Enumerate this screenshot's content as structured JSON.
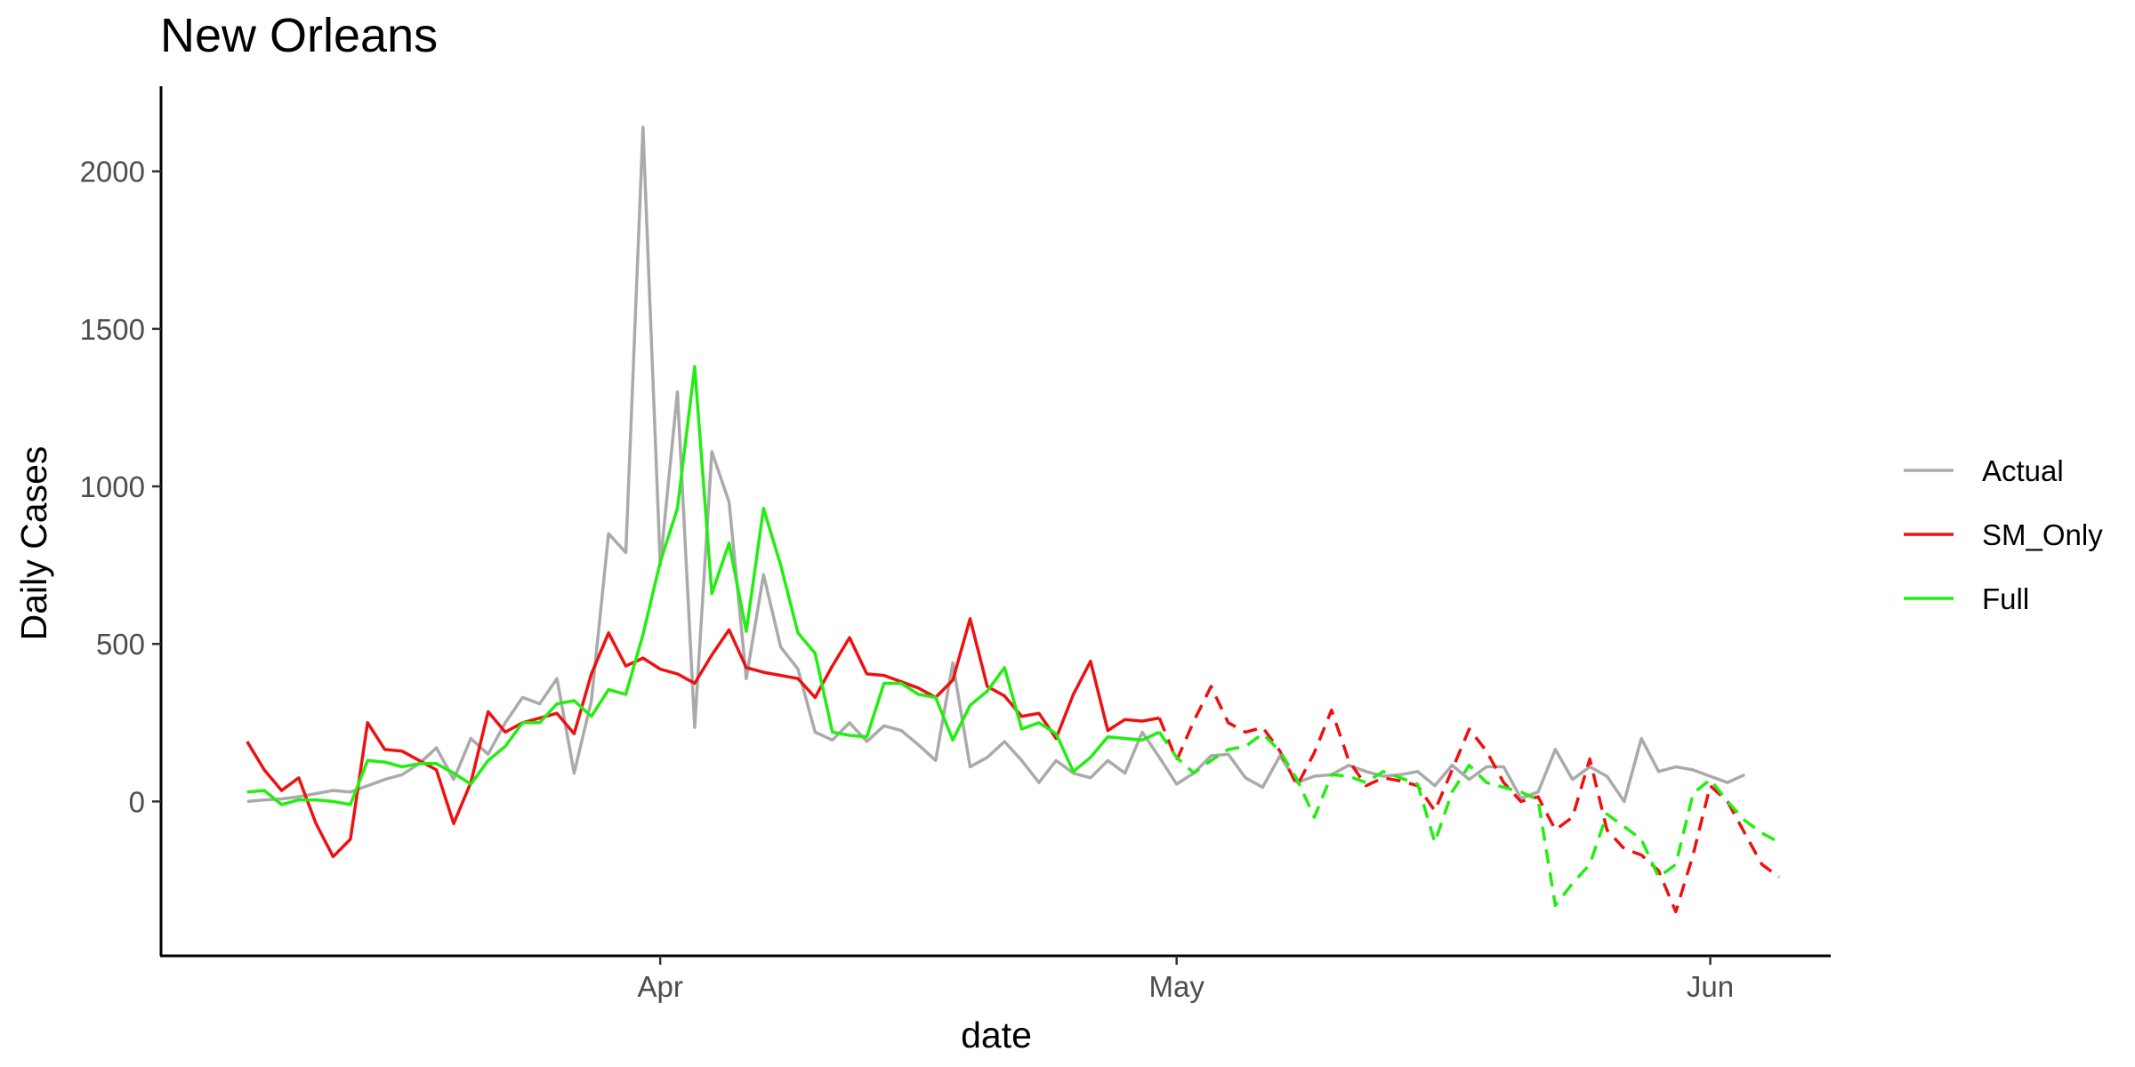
{
  "chart_data": {
    "type": "line",
    "title": "New Orleans",
    "xlabel": "date",
    "ylabel": "Daily Cases",
    "x_ticks": [
      {
        "label": "Apr",
        "date": "2020-04-01"
      },
      {
        "label": "May",
        "date": "2020-05-01"
      },
      {
        "label": "Jun",
        "date": "2020-06-01"
      }
    ],
    "y_ticks": [
      0,
      500,
      1000,
      1500,
      2000
    ],
    "xlim": [
      "2020-03-03",
      "2020-06-08"
    ],
    "ylim": [
      -490,
      2270
    ],
    "grid": false,
    "legend_position": "right",
    "legend": [
      {
        "name": "Actual",
        "color": "#aaaaaa"
      },
      {
        "name": "SM_Only",
        "color": "#ee1111"
      },
      {
        "name": "Full",
        "color": "#22ee11"
      }
    ],
    "series": [
      {
        "name": "Actual",
        "color": "#aaaaaa",
        "dashed": false,
        "start_date": "2020-03-08",
        "values": [
          0,
          5,
          8,
          15,
          25,
          35,
          30,
          50,
          70,
          85,
          120,
          170,
          70,
          200,
          150,
          250,
          330,
          310,
          390,
          90,
          320,
          850,
          790,
          2140,
          750,
          1300,
          235,
          1110,
          950,
          390,
          720,
          490,
          420,
          220,
          195,
          250,
          190,
          240,
          225,
          180,
          130,
          440,
          110,
          140,
          190,
          130,
          60,
          130,
          90,
          75,
          130,
          90,
          220,
          140,
          55,
          90,
          145,
          150,
          75,
          45,
          145,
          60,
          80,
          85,
          115,
          95,
          80,
          85,
          95,
          50,
          115,
          70,
          110,
          110,
          10,
          30,
          165,
          70,
          110,
          80,
          0,
          200,
          95,
          110,
          100,
          80,
          60,
          85
        ]
      },
      {
        "name": "SM_Only",
        "color": "#ee1111",
        "dashed": false,
        "start_date": "2020-03-08",
        "values": [
          190,
          100,
          35,
          75,
          -70,
          -175,
          -120,
          250,
          165,
          160,
          130,
          100,
          -70,
          60,
          285,
          220,
          250,
          265,
          280,
          215,
          405,
          535,
          430,
          455,
          420,
          405,
          375,
          465,
          545,
          425,
          410,
          400,
          390,
          330,
          430,
          520,
          405,
          400,
          380,
          360,
          330,
          385,
          580,
          365,
          335,
          270,
          280,
          200,
          340,
          445,
          225,
          260,
          255,
          265
        ]
      },
      {
        "name": "SM_Only (forecast)",
        "color": "#ee1111",
        "dashed": true,
        "start_date": "2020-04-30",
        "values": [
          265,
          130,
          255,
          365,
          250,
          220,
          235,
          160,
          50,
          155,
          290,
          130,
          50,
          75,
          65,
          50,
          -30,
          100,
          230,
          160,
          60,
          0,
          15,
          -90,
          -50,
          135,
          -90,
          -150,
          -170,
          -220,
          -350,
          -170,
          50,
          0,
          -100,
          -200,
          -240
        ]
      },
      {
        "name": "Full",
        "color": "#22ee11",
        "dashed": false,
        "start_date": "2020-03-08",
        "values": [
          30,
          35,
          -10,
          5,
          5,
          0,
          -10,
          130,
          125,
          110,
          120,
          120,
          90,
          55,
          130,
          175,
          250,
          250,
          310,
          320,
          270,
          355,
          340,
          530,
          760,
          930,
          1380,
          660,
          820,
          540,
          930,
          750,
          535,
          470,
          220,
          210,
          205,
          375,
          375,
          340,
          330,
          195,
          305,
          350,
          425,
          230,
          250,
          215,
          95,
          140,
          205,
          200,
          195,
          220
        ]
      },
      {
        "name": "Full (forecast)",
        "color": "#22ee11",
        "dashed": true,
        "start_date": "2020-04-30",
        "values": [
          220,
          140,
          90,
          130,
          165,
          175,
          215,
          160,
          70,
          -50,
          85,
          80,
          60,
          95,
          75,
          55,
          -130,
          30,
          115,
          60,
          45,
          30,
          5,
          -330,
          -260,
          -200,
          -40,
          -80,
          -120,
          -240,
          -200,
          25,
          70,
          0,
          -60,
          -100,
          -130
        ]
      }
    ]
  }
}
